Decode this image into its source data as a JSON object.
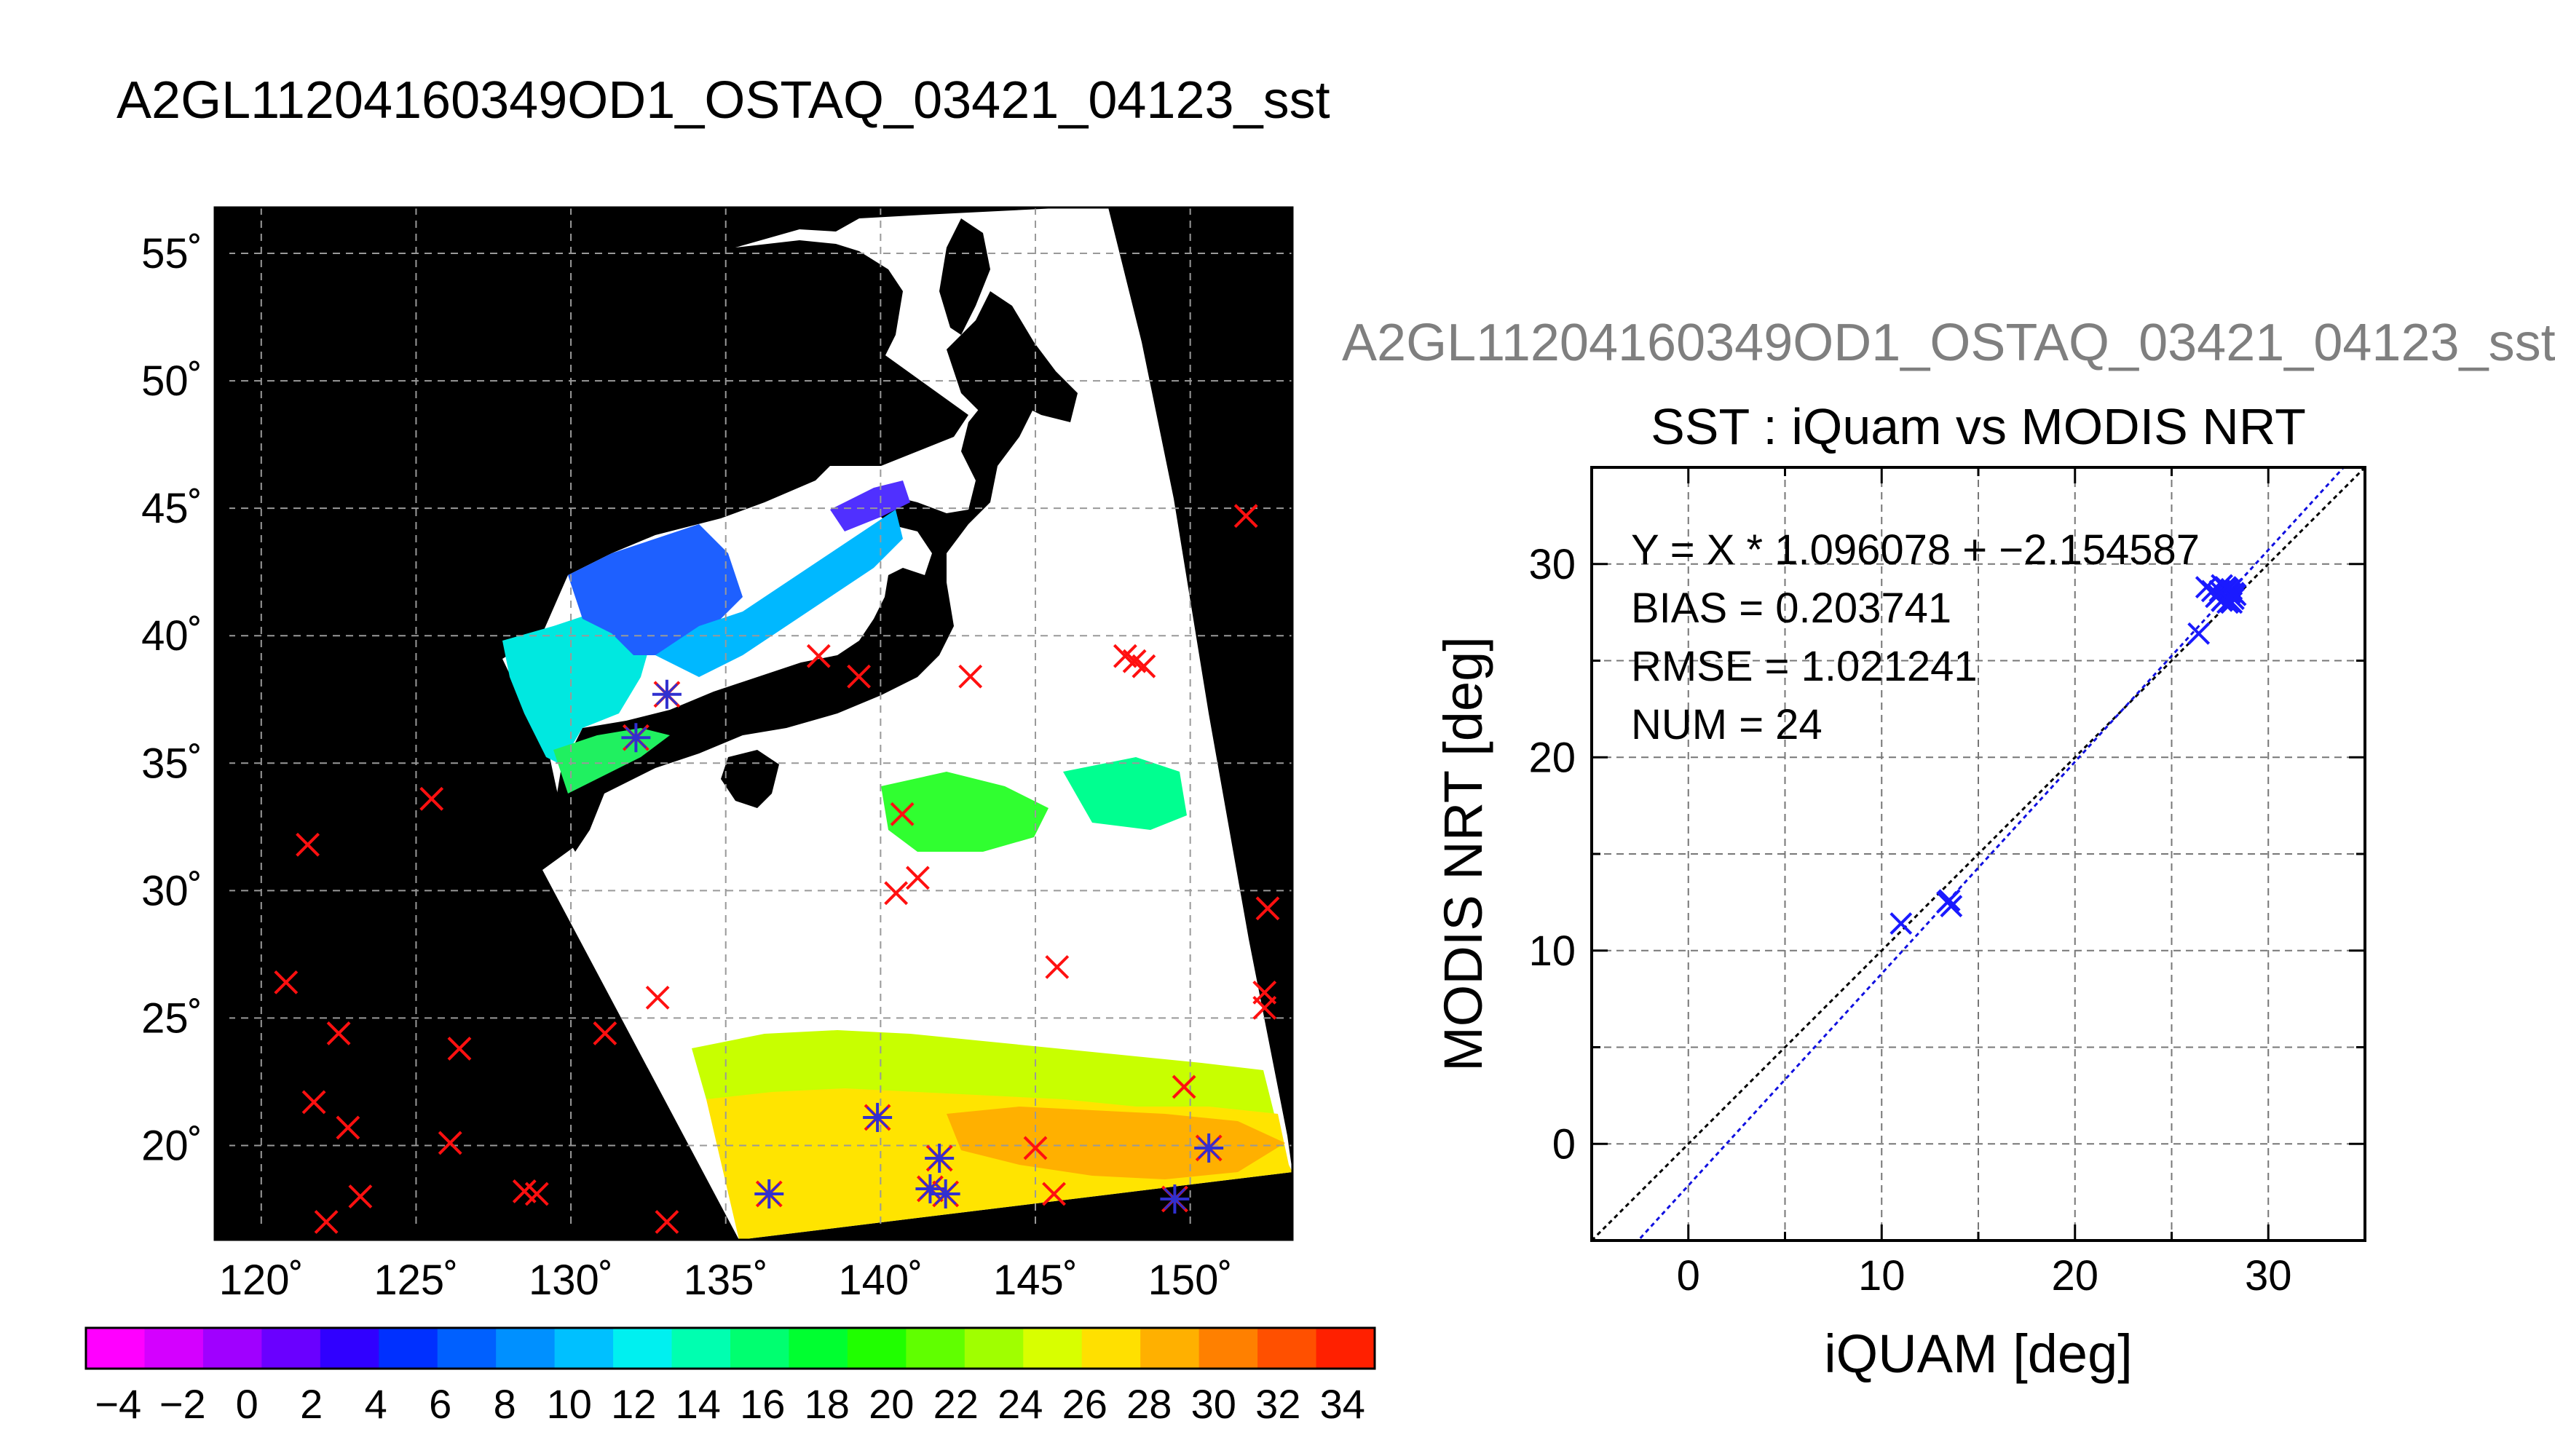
{
  "main_title": "A2GL11204160349OD1_OSTAQ_03421_04123_sst",
  "scatter_super_title": "A2GL11204160349OD1_OSTAQ_03421_04123_sst",
  "map": {
    "lat_ticks": [
      "55˚",
      "50˚",
      "45˚",
      "40˚",
      "35˚",
      "30˚",
      "25˚",
      "20˚"
    ],
    "lon_ticks": [
      "120˚",
      "125˚",
      "130˚",
      "135˚",
      "140˚",
      "145˚",
      "150˚"
    ],
    "lat_values": [
      55,
      50,
      45,
      40,
      35,
      30,
      25,
      20
    ],
    "lon_values": [
      120,
      125,
      130,
      135,
      140,
      145,
      150
    ],
    "lon_range": [
      118.5,
      153.3
    ],
    "lat_range": [
      16.3,
      56.8
    ]
  },
  "colorbar": {
    "labels": [
      "−4",
      "−2",
      "0",
      "2",
      "4",
      "6",
      "8",
      "10",
      "12",
      "14",
      "16",
      "18",
      "20",
      "22",
      "24",
      "26",
      "28",
      "30",
      "32",
      "34"
    ],
    "values": [
      -4,
      -2,
      0,
      2,
      4,
      6,
      8,
      10,
      12,
      14,
      16,
      18,
      20,
      22,
      24,
      26,
      28,
      30,
      32,
      34
    ],
    "range": [
      -5,
      35
    ],
    "colors": [
      "#ff00ff",
      "#d400ff",
      "#a000ff",
      "#6a00ff",
      "#3000ff",
      "#0030ff",
      "#0060ff",
      "#0090ff",
      "#00c0ff",
      "#00f0f0",
      "#00ffb0",
      "#00ff70",
      "#00ff30",
      "#20ff00",
      "#60ff00",
      "#a0ff00",
      "#d8ff00",
      "#ffe000",
      "#ffb000",
      "#ff8000",
      "#ff5000",
      "#ff2000"
    ]
  },
  "chart_data": [
    {
      "type": "map",
      "points_red_x": [
        {
          "lon": 151.8,
          "lat": 44.7
        },
        {
          "lon": 138.0,
          "lat": 39.2
        },
        {
          "lon": 139.3,
          "lat": 38.4
        },
        {
          "lon": 142.9,
          "lat": 38.4
        },
        {
          "lon": 147.9,
          "lat": 39.2
        },
        {
          "lon": 148.2,
          "lat": 39.0
        },
        {
          "lon": 148.5,
          "lat": 38.8
        },
        {
          "lon": 125.5,
          "lat": 33.6
        },
        {
          "lon": 140.7,
          "lat": 33.0
        },
        {
          "lon": 121.5,
          "lat": 31.8
        },
        {
          "lon": 141.2,
          "lat": 30.5
        },
        {
          "lon": 140.5,
          "lat": 29.9
        },
        {
          "lon": 152.5,
          "lat": 29.3
        },
        {
          "lon": 145.7,
          "lat": 27.0
        },
        {
          "lon": 120.8,
          "lat": 26.4
        },
        {
          "lon": 152.4,
          "lat": 26.0
        },
        {
          "lon": 152.4,
          "lat": 25.4
        },
        {
          "lon": 132.8,
          "lat": 25.8
        },
        {
          "lon": 122.5,
          "lat": 24.4
        },
        {
          "lon": 131.1,
          "lat": 24.4
        },
        {
          "lon": 126.4,
          "lat": 23.8
        },
        {
          "lon": 149.8,
          "lat": 22.3
        },
        {
          "lon": 121.7,
          "lat": 21.7
        },
        {
          "lon": 122.8,
          "lat": 20.7
        },
        {
          "lon": 126.1,
          "lat": 20.1
        },
        {
          "lon": 145.0,
          "lat": 19.9
        },
        {
          "lon": 128.5,
          "lat": 18.2
        },
        {
          "lon": 128.9,
          "lat": 18.1
        },
        {
          "lon": 123.2,
          "lat": 18.0
        },
        {
          "lon": 145.6,
          "lat": 18.1
        },
        {
          "lon": 122.1,
          "lat": 17.0
        },
        {
          "lon": 133.1,
          "lat": 17.0
        }
      ],
      "points_match": [
        {
          "lon": 132.1,
          "lat": 36.0
        },
        {
          "lon": 133.1,
          "lat": 37.7
        },
        {
          "lon": 139.9,
          "lat": 21.1
        },
        {
          "lon": 141.9,
          "lat": 19.5
        },
        {
          "lon": 141.6,
          "lat": 18.3
        },
        {
          "lon": 142.1,
          "lat": 18.1
        },
        {
          "lon": 136.4,
          "lat": 18.1
        },
        {
          "lon": 150.6,
          "lat": 19.9
        },
        {
          "lon": 149.5,
          "lat": 17.9
        }
      ]
    },
    {
      "type": "scatter",
      "title": "SST : iQuam vs MODIS NRT",
      "xlabel": "iQUAM [deg]",
      "ylabel": "MODIS NRT [deg]",
      "xlim": [
        -5,
        35
      ],
      "ylim": [
        -5,
        35
      ],
      "x_ticks": [
        0,
        10,
        20,
        30
      ],
      "y_ticks": [
        0,
        10,
        20,
        30
      ],
      "fit": {
        "slope": 1.096078,
        "intercept": -2.154587
      },
      "stats": [
        "Y = X * 1.096078 + −2.154587",
        "BIAS = 0.203741",
        "RMSE = 1.021241",
        "NUM = 24"
      ],
      "points": [
        {
          "x": 11.0,
          "y": 11.4
        },
        {
          "x": 13.5,
          "y": 12.6
        },
        {
          "x": 13.6,
          "y": 12.3
        },
        {
          "x": 13.4,
          "y": 12.5
        },
        {
          "x": 26.4,
          "y": 26.4
        },
        {
          "x": 26.8,
          "y": 28.8
        },
        {
          "x": 27.1,
          "y": 28.6
        },
        {
          "x": 27.4,
          "y": 28.4
        },
        {
          "x": 27.6,
          "y": 28.9
        },
        {
          "x": 27.6,
          "y": 28.1
        },
        {
          "x": 27.8,
          "y": 28.3
        },
        {
          "x": 27.9,
          "y": 28.0
        },
        {
          "x": 28.0,
          "y": 28.5
        },
        {
          "x": 28.1,
          "y": 28.7
        },
        {
          "x": 28.2,
          "y": 28.2
        },
        {
          "x": 28.3,
          "y": 28.4
        },
        {
          "x": 27.5,
          "y": 28.6
        },
        {
          "x": 27.7,
          "y": 28.2
        },
        {
          "x": 27.9,
          "y": 28.7
        },
        {
          "x": 28.0,
          "y": 28.1
        },
        {
          "x": 27.3,
          "y": 28.3
        },
        {
          "x": 27.8,
          "y": 28.8
        },
        {
          "x": 28.1,
          "y": 28.0
        },
        {
          "x": 28.2,
          "y": 28.5
        }
      ]
    }
  ]
}
